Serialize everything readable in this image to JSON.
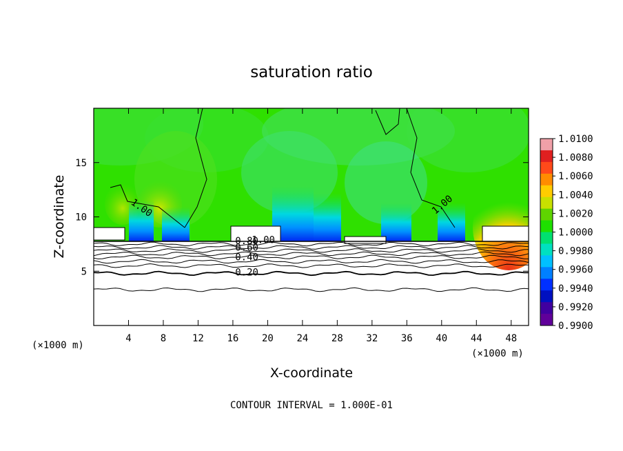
{
  "chart_data": {
    "type": "heatmap",
    "title": "saturation ratio",
    "xlabel": "X-coordinate",
    "ylabel": "Z-coordinate",
    "x_unit_left": "(×1000 m)",
    "x_unit_right": "(×1000 m)",
    "footer": "CONTOUR INTERVAL = 1.000E-01",
    "xlim": [
      0,
      50
    ],
    "ylim": [
      0,
      20
    ],
    "xticks": [
      4,
      8,
      12,
      16,
      20,
      24,
      28,
      32,
      36,
      40,
      44,
      48
    ],
    "yticks": [
      5,
      10,
      15
    ],
    "colorbar": {
      "ticks": [
        "1.0100",
        "1.0080",
        "1.0060",
        "1.0040",
        "1.0020",
        "1.0000",
        "0.9980",
        "0.9960",
        "0.9940",
        "0.9920",
        "0.9900"
      ],
      "range": [
        0.99,
        1.01
      ],
      "colors": [
        "#f0a0a8",
        "#e02020",
        "#ff4a1a",
        "#ff8c00",
        "#ffcc00",
        "#c8e000",
        "#5fd400",
        "#1ee000",
        "#00e070",
        "#00e0c0",
        "#00c0ff",
        "#0080ff",
        "#0030ff",
        "#0010c0",
        "#4000a0",
        "#60009a"
      ]
    },
    "contour_labels": [
      {
        "text": "1.00",
        "x": 5.3,
        "y": 10.6
      },
      {
        "text": "1.00",
        "x": 40.3,
        "y": 10.9
      },
      {
        "text": "0.80",
        "x": 17.6,
        "y": 7.5
      },
      {
        "text": "0.60",
        "x": 17.6,
        "y": 6.9
      },
      {
        "text": "0.40",
        "x": 17.6,
        "y": 6.0
      },
      {
        "text": "0.20",
        "x": 17.6,
        "y": 4.6
      },
      {
        "text": "1.00",
        "x": 19.5,
        "y": 7.6
      }
    ],
    "contour_levels_y": [
      3.3,
      4.8,
      5.5,
      5.9,
      6.3,
      6.6,
      6.9,
      7.2,
      7.5
    ]
  }
}
